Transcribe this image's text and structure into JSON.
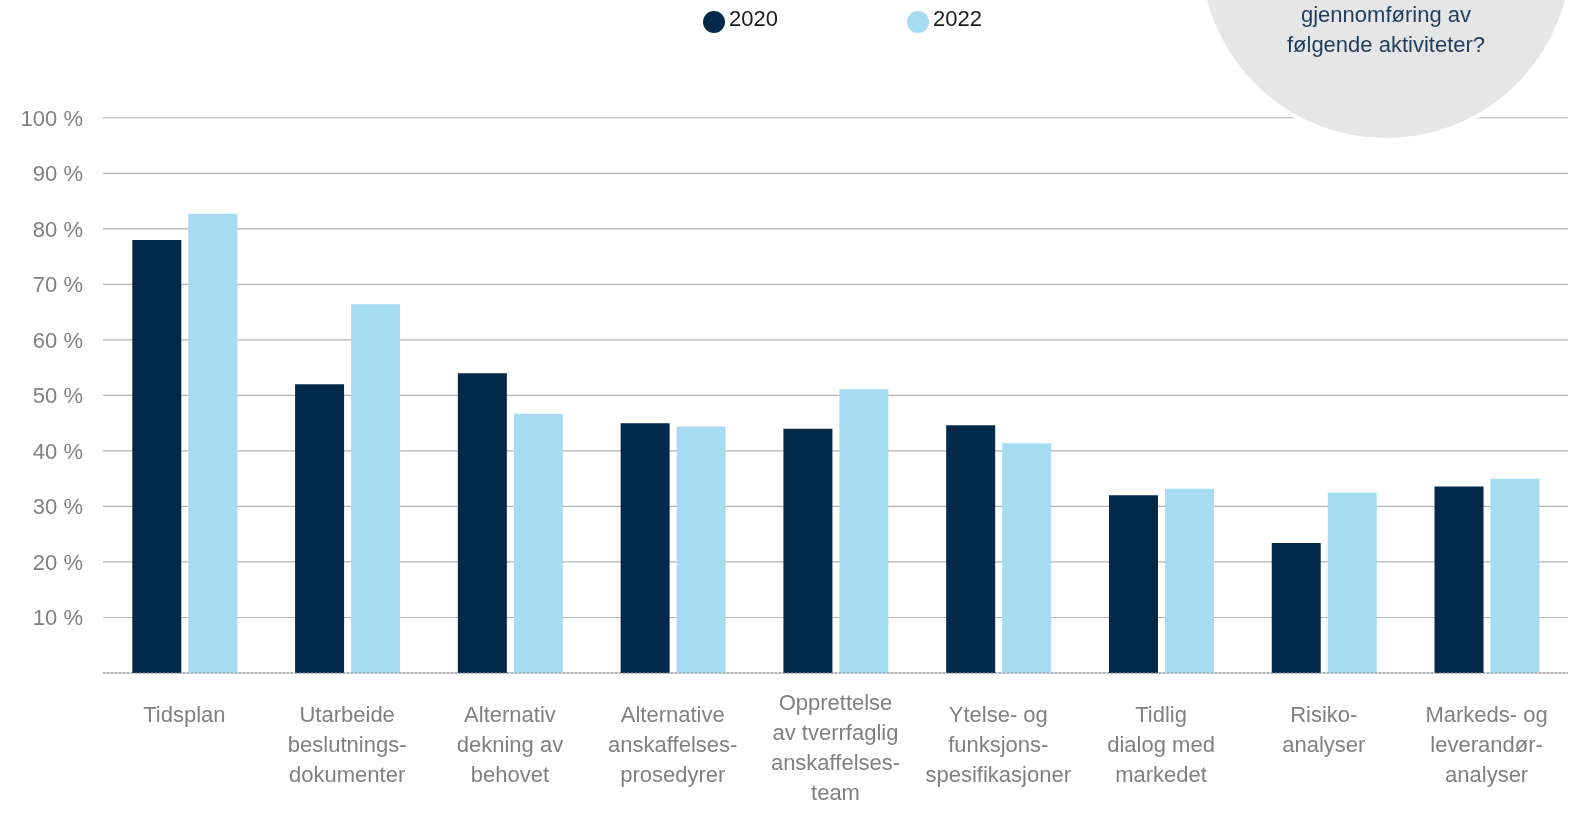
{
  "chart_data": {
    "type": "bar",
    "categories": [
      "Tidsplan",
      "Utarbeide\nbeslutnings-\ndokumenter",
      "Alternativ\ndekning av\nbehovet",
      "Alternative\nanskaffelses-\nprosedyrer",
      "Opprettelse\nav tverrfaglig\nanskaffelses-\nteam",
      "Ytelse- og\nfunksjons-\nspesifikasjoner",
      "Tidlig\ndialog med\nmarkedet",
      "Risiko-\nanalyser",
      "Markeds- og\nleverandør-\nanalyser"
    ],
    "series": [
      {
        "name": "2020",
        "color": "#03294a",
        "values": [
          78,
          52,
          54,
          45,
          44,
          44.6,
          32,
          23.4,
          33.6
        ]
      },
      {
        "name": "2022",
        "color": "#a7dbf2",
        "values": [
          82.7,
          66.4,
          46.7,
          44.4,
          51.1,
          41.4,
          33.2,
          32.5,
          35
        ]
      }
    ],
    "ylim": [
      0,
      100
    ],
    "yticks": [
      {
        "value": 10,
        "label": "10 %"
      },
      {
        "value": 20,
        "label": "20 %"
      },
      {
        "value": 30,
        "label": "30 %"
      },
      {
        "value": 40,
        "label": "40 %"
      },
      {
        "value": 50,
        "label": "50 %"
      },
      {
        "value": 60,
        "label": "60 %"
      },
      {
        "value": 70,
        "label": "70 %"
      },
      {
        "value": 80,
        "label": "80 %"
      },
      {
        "value": 90,
        "label": "90 %"
      },
      {
        "value": 100,
        "label": "100 %"
      }
    ],
    "grid": "y",
    "legend": "top",
    "annotations": [
      "gjennomføring av\nfølgende aktiviteter?"
    ]
  }
}
